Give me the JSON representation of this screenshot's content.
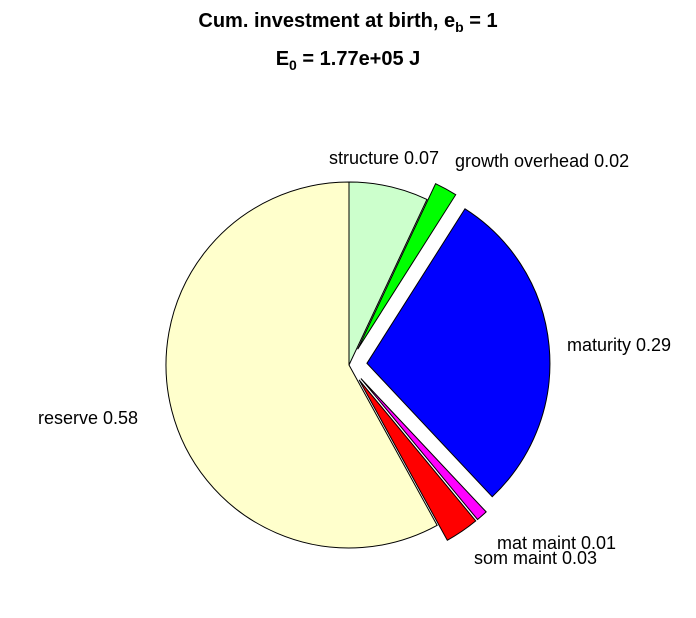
{
  "chart_data": {
    "type": "pie",
    "title": {
      "line1_prefix": "Cum. investment at birth, e",
      "line1_sub": "b",
      "line1_suffix": " = 1",
      "line2_prefix": "E",
      "line2_sub": "0",
      "line2_suffix": " = 1.77e+05 J"
    },
    "slices": [
      {
        "label": "structure 0.07",
        "value": 0.07,
        "color": "#ccffcc",
        "exploded": false
      },
      {
        "label": "growth overhead 0.02",
        "value": 0.02,
        "color": "#00ff00",
        "exploded": true
      },
      {
        "label": "maturity 0.29",
        "value": 0.29,
        "color": "#0000ff",
        "exploded": true
      },
      {
        "label": "mat maint 0.01",
        "value": 0.01,
        "color": "#ff00ff",
        "exploded": true
      },
      {
        "label": "som maint 0.03",
        "value": 0.03,
        "color": "#ff0000",
        "exploded": true
      },
      {
        "label": "reserve 0.58",
        "value": 0.58,
        "color": "#ffffcc",
        "exploded": false
      }
    ]
  }
}
